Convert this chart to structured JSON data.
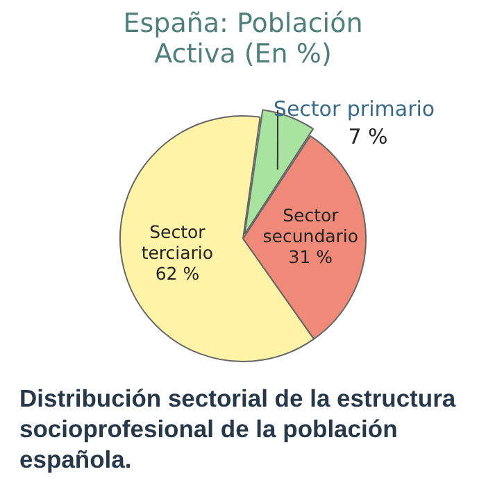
{
  "chart_data": {
    "type": "pie",
    "title": "España: Población Activa (En %)",
    "categories": [
      "Sector primario",
      "Sector secundario",
      "Sector terciario"
    ],
    "values": [
      7,
      31,
      62
    ],
    "colors": [
      "#a8e4a0",
      "#f08a78",
      "#fff3a8"
    ],
    "value_labels": [
      "7 %",
      "31 %",
      "62 %"
    ],
    "legend": false,
    "annotations": [
      "Distribución sectorial de la estructura socioprofesional de la población española."
    ]
  }
}
